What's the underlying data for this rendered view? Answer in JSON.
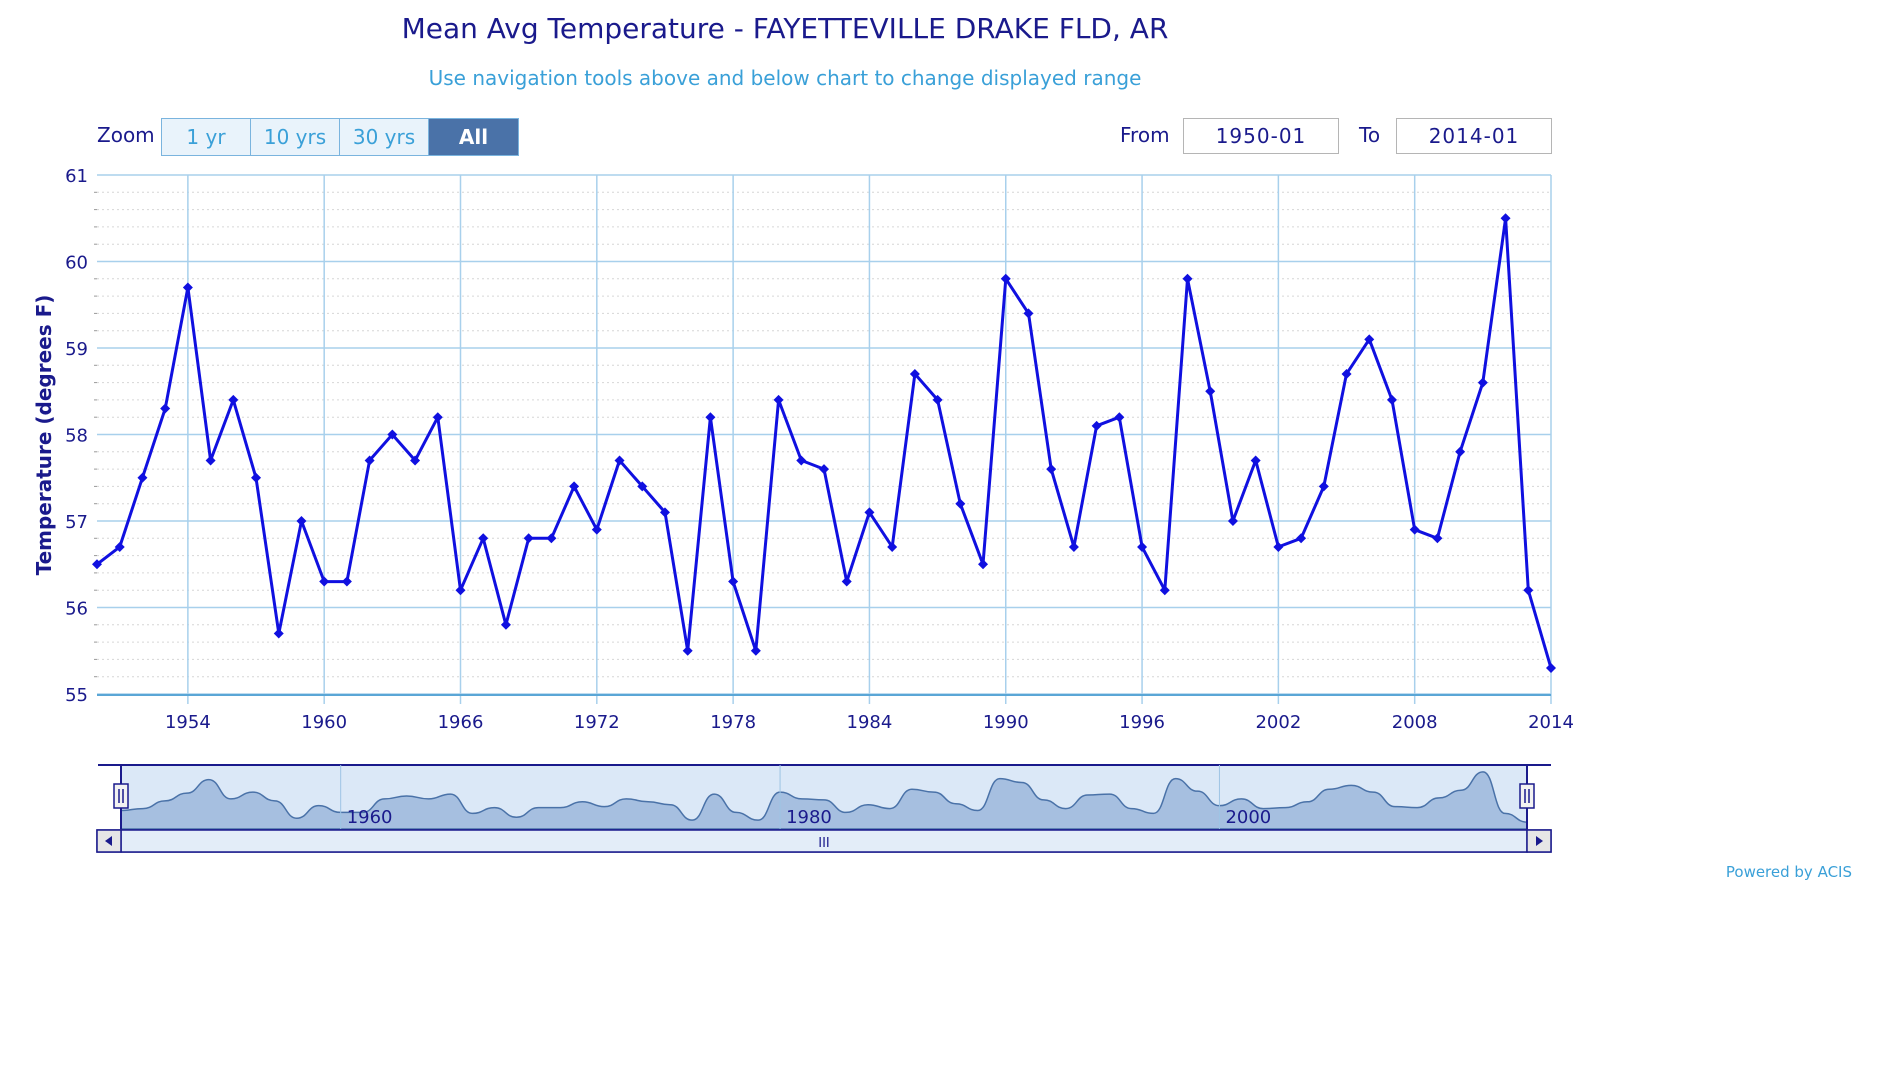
{
  "header": {
    "title": "Mean Avg Temperature - FAYETTEVILLE DRAKE FLD, AR",
    "subtitle": "Use navigation tools above and below chart to change displayed range"
  },
  "zoom": {
    "label": "Zoom",
    "buttons": [
      "1 yr",
      "10 yrs",
      "30 yrs",
      "All"
    ],
    "active": "All"
  },
  "range": {
    "from_label": "From",
    "from_value": "1950-01",
    "to_label": "To",
    "to_value": "2014-01"
  },
  "footer": {
    "powered_by": "Powered by ACIS"
  },
  "navigator": {
    "labels": [
      {
        "year": 1960,
        "text": "1960"
      },
      {
        "year": 1980,
        "text": "1980"
      },
      {
        "year": 2000,
        "text": "2000"
      }
    ],
    "scrollbar_grip": "III"
  },
  "colors": {
    "series": "#1010e0",
    "grid": "#a8d0ec",
    "text": "#1a1a8c",
    "accent": "#3aa0d8",
    "navigator_fill": "#a6bfe0",
    "navigator_bg": "#dbe8f7"
  },
  "chart_data": {
    "type": "line",
    "title": "Mean Avg Temperature - FAYETTEVILLE DRAKE FLD, AR",
    "subtitle": "Use navigation tools above and below chart to change displayed range",
    "xlabel": "",
    "ylabel": "Temperature (degrees F)",
    "xlim": [
      1950,
      2014
    ],
    "ylim": [
      55,
      61
    ],
    "x_ticks": [
      "1954",
      "1960",
      "1966",
      "1972",
      "1978",
      "1984",
      "1990",
      "1996",
      "2002",
      "2008",
      "2014"
    ],
    "y_ticks": [
      "55",
      "56",
      "57",
      "58",
      "59",
      "60",
      "61"
    ],
    "grid": true,
    "series": [
      {
        "x": [
          1950,
          1951,
          1952,
          1953,
          1954,
          1955,
          1956,
          1957,
          1958,
          1959,
          1960,
          1961,
          1962,
          1963,
          1964,
          1965,
          1966,
          1967,
          1968,
          1969,
          1970,
          1971,
          1972,
          1973,
          1974,
          1975,
          1976,
          1977,
          1978,
          1979,
          1980,
          1981,
          1982,
          1983,
          1984,
          1985,
          1986,
          1987,
          1988,
          1989,
          1990,
          1991,
          1992,
          1993,
          1994,
          1995,
          1996,
          1997,
          1998,
          1999,
          2000,
          2001,
          2002,
          2003,
          2004,
          2005,
          2006,
          2007,
          2008,
          2009,
          2010,
          2011,
          2012,
          2013,
          2014
        ],
        "values": [
          56.5,
          56.7,
          57.5,
          58.3,
          59.7,
          57.7,
          58.4,
          57.5,
          55.7,
          57.0,
          56.3,
          56.3,
          57.7,
          58.0,
          57.7,
          58.2,
          56.2,
          56.8,
          55.8,
          56.8,
          56.8,
          57.4,
          56.9,
          57.7,
          57.4,
          57.1,
          55.5,
          58.2,
          56.3,
          55.5,
          58.4,
          57.7,
          57.6,
          56.3,
          57.1,
          56.7,
          58.7,
          58.4,
          57.2,
          56.5,
          59.8,
          59.4,
          57.6,
          56.7,
          58.1,
          58.2,
          56.7,
          56.2,
          59.8,
          58.5,
          57.0,
          57.7,
          56.7,
          56.8,
          57.4,
          58.7,
          59.1,
          58.4,
          56.9,
          56.8,
          57.8,
          58.6,
          60.5,
          56.2,
          55.3
        ]
      }
    ]
  }
}
